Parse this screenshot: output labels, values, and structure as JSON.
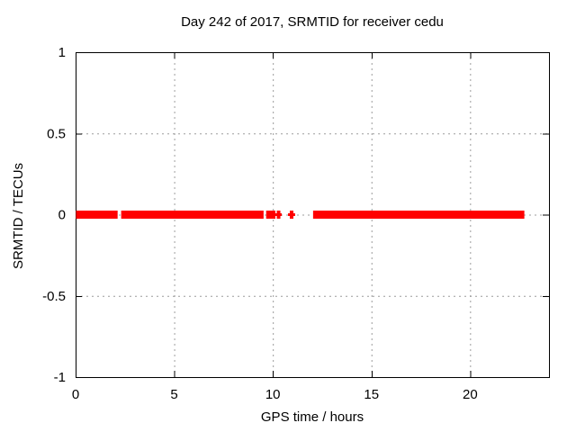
{
  "figure": {
    "background": "#ffffff"
  },
  "chart_data": {
    "type": "scatter",
    "title": "Day 242 of 2017, SRMTID for receiver cedu",
    "xlabel": "GPS time / hours",
    "ylabel": "SRMTID / TECUs",
    "xlim": [
      0,
      24
    ],
    "ylim": [
      -1,
      1
    ],
    "xticks": [
      0,
      5,
      10,
      15,
      20
    ],
    "xtick_labels": [
      "0",
      "5",
      "10",
      "15",
      "20"
    ],
    "yticks": [
      -1,
      -0.5,
      0,
      0.5,
      1
    ],
    "ytick_labels": [
      "-1",
      "-0.5",
      "0",
      "0.5",
      "1"
    ],
    "grid": true,
    "legend": "none",
    "marker": "plus",
    "colors": {
      "marker": "#ff0000",
      "grid": "#9c9c9c",
      "axis": "#000000",
      "text": "#000000",
      "background": "#ffffff"
    },
    "series": [
      {
        "name": "SRMTID",
        "y": 0,
        "x_segments": [
          {
            "start": 0.02,
            "end": 2.13,
            "density": "solid"
          },
          {
            "start": 2.31,
            "end": 9.53,
            "density": "solid"
          },
          {
            "start": 9.66,
            "end": 10.13,
            "density": "solid"
          },
          {
            "start": 10.13,
            "end": 10.45,
            "density": "sparse"
          },
          {
            "start": 10.77,
            "end": 11.13,
            "density": "sparse"
          },
          {
            "start": 12.04,
            "end": 22.75,
            "density": "solid"
          }
        ]
      }
    ]
  }
}
